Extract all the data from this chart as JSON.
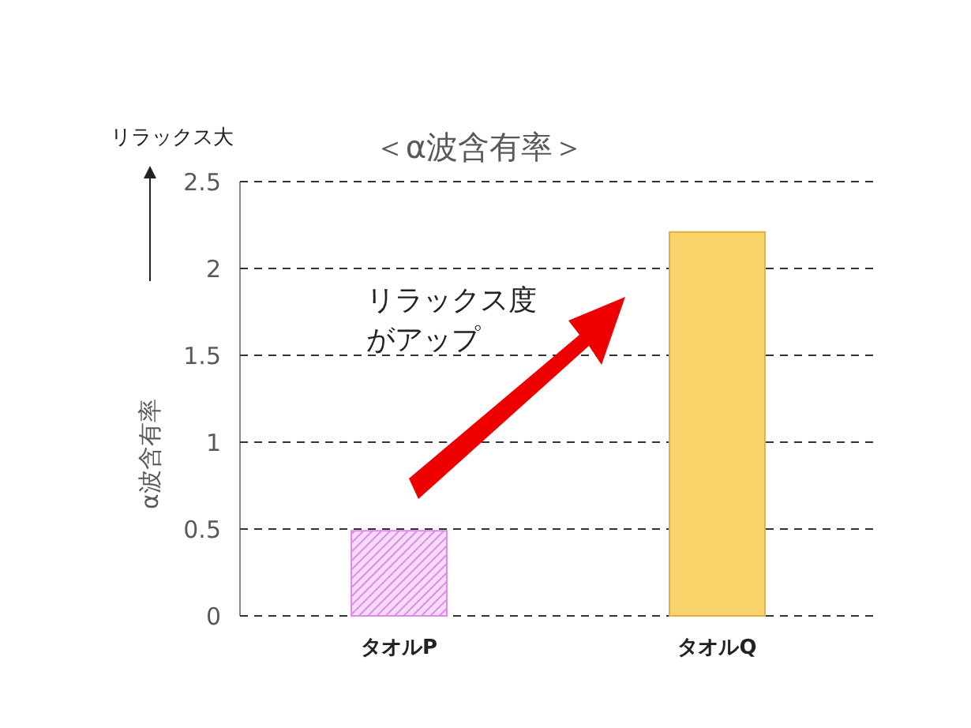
{
  "chart_data": {
    "type": "bar",
    "title": "＜α波含有率＞",
    "ylabel": "α波含有率",
    "categories": [
      "タオルP",
      "タオルQ"
    ],
    "values": [
      0.49,
      2.21
    ],
    "colors": [
      "#e08ae8",
      "#f9d46a"
    ],
    "ylim": [
      0,
      2.5
    ],
    "yticks": [
      0,
      0.5,
      1,
      1.5,
      2,
      2.5
    ],
    "grid": "y",
    "annotations": [
      "リラックス大",
      "リラックス度",
      "がアップ"
    ]
  }
}
